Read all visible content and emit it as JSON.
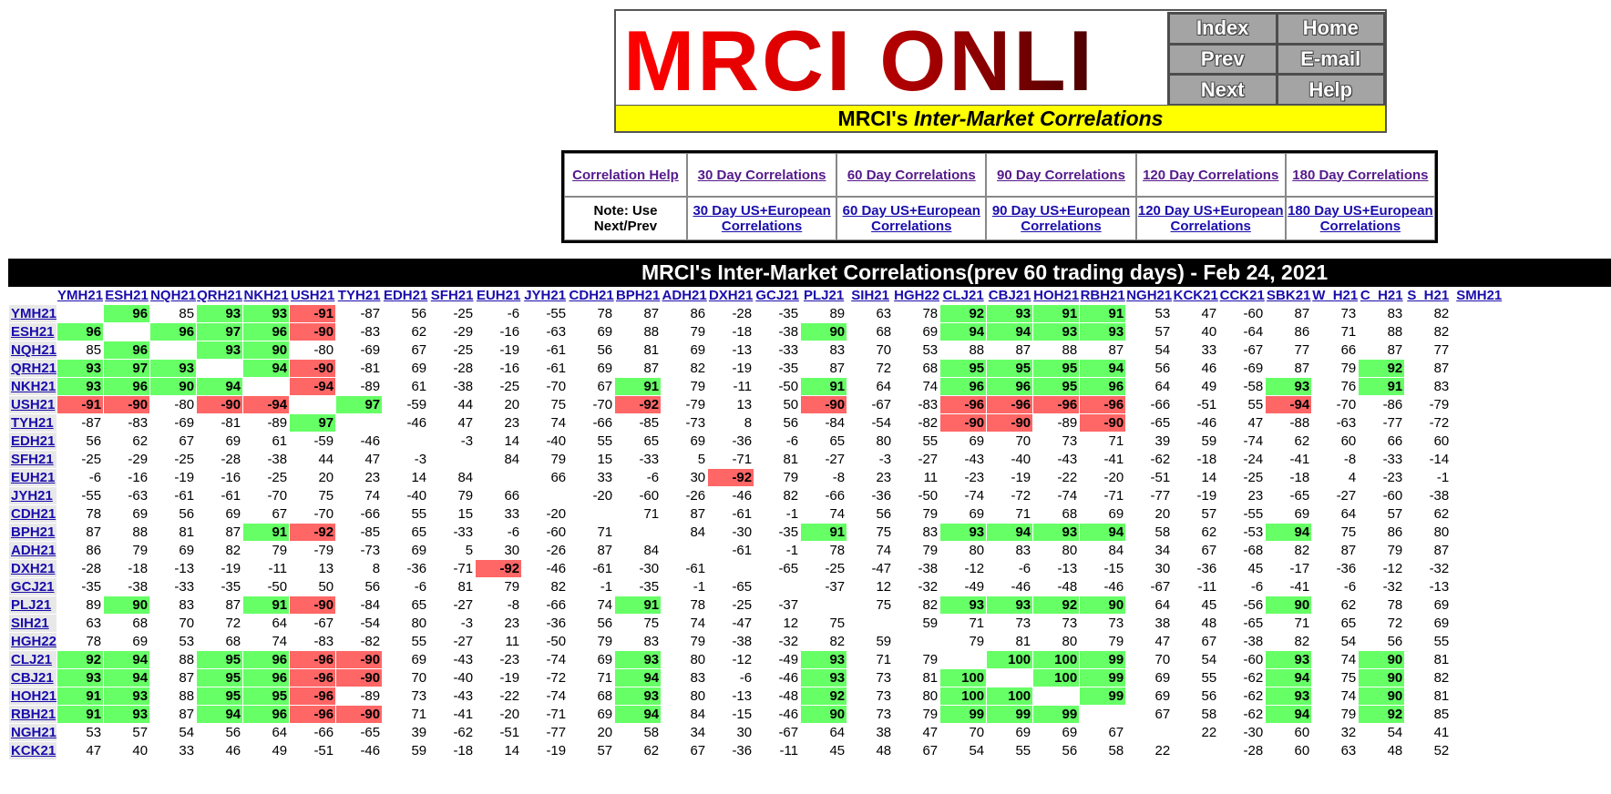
{
  "banner": {
    "logo_text": "MRCI ONLINE",
    "nav": [
      "Index",
      "Home",
      "Prev",
      "E-mail",
      "Next",
      "Help"
    ],
    "subtitle_prefix": "MRCI's ",
    "subtitle_italic": "Inter-Market Correlations"
  },
  "links": {
    "row1": [
      "Correlation Help",
      "30 Day Correlations",
      "60 Day Correlations",
      "90 Day Correlations",
      "120 Day Correlations",
      "180 Day Correlations"
    ],
    "note": "Note: Use Next/Prev",
    "row2": [
      "30 Day US+European Correlations",
      "60 Day US+European Correlations",
      "90 Day US+European Correlations",
      "120 Day US+European Correlations",
      "180 Day US+European Correlations"
    ]
  },
  "table": {
    "title": "MRCI's Inter-Market Correlations(prev 60 trading days) - Feb 24, 2021",
    "columns": [
      "YMH21",
      "ESH21",
      "NQH21",
      "QRH21",
      "NKH21",
      "USH21",
      "TYH21",
      "EDH21",
      "SFH21",
      "EUH21",
      "JYH21",
      "CDH21",
      "BPH21",
      "ADH21",
      "DXH21",
      "GCJ21",
      "PLJ21",
      "SIH21",
      "HGH22",
      "CLJ21",
      "CBJ21",
      "HOH21",
      "RBH21",
      "NGH21",
      "KCK21",
      "CCK21",
      "SBK21",
      "W_H21",
      "C_H21",
      "S_H21",
      "SMH21"
    ],
    "rows": [
      {
        "label": "YMH21",
        "values": [
          "",
          "96",
          "85",
          "93",
          "93",
          "-91",
          "-87",
          "56",
          "-25",
          "-6",
          "-55",
          "78",
          "87",
          "86",
          "-28",
          "-35",
          "89",
          "63",
          "78",
          "92",
          "93",
          "91",
          "91",
          "53",
          "47",
          "-60",
          "87",
          "73",
          "83",
          "82",
          ""
        ]
      },
      {
        "label": "ESH21",
        "values": [
          "96",
          "",
          "96",
          "97",
          "96",
          "-90",
          "-83",
          "62",
          "-29",
          "-16",
          "-63",
          "69",
          "88",
          "79",
          "-18",
          "-38",
          "90",
          "68",
          "69",
          "94",
          "94",
          "93",
          "93",
          "57",
          "40",
          "-64",
          "86",
          "71",
          "88",
          "82",
          ""
        ]
      },
      {
        "label": "NQH21",
        "values": [
          "85",
          "96",
          "",
          "93",
          "90",
          "-80",
          "-69",
          "67",
          "-25",
          "-19",
          "-61",
          "56",
          "81",
          "69",
          "-13",
          "-33",
          "83",
          "70",
          "53",
          "88",
          "87",
          "88",
          "87",
          "54",
          "33",
          "-67",
          "77",
          "66",
          "87",
          "77",
          ""
        ]
      },
      {
        "label": "QRH21",
        "values": [
          "93",
          "97",
          "93",
          "",
          "94",
          "-90",
          "-81",
          "69",
          "-28",
          "-16",
          "-61",
          "69",
          "87",
          "82",
          "-19",
          "-35",
          "87",
          "72",
          "68",
          "95",
          "95",
          "95",
          "94",
          "56",
          "46",
          "-69",
          "87",
          "79",
          "92",
          "87",
          ""
        ]
      },
      {
        "label": "NKH21",
        "values": [
          "93",
          "96",
          "90",
          "94",
          "",
          "-94",
          "-89",
          "61",
          "-38",
          "-25",
          "-70",
          "67",
          "91",
          "79",
          "-11",
          "-50",
          "91",
          "64",
          "74",
          "96",
          "96",
          "95",
          "96",
          "64",
          "49",
          "-58",
          "93",
          "76",
          "91",
          "83",
          ""
        ]
      },
      {
        "label": "USH21",
        "values": [
          "-91",
          "-90",
          "-80",
          "-90",
          "-94",
          "",
          "97",
          "-59",
          "44",
          "20",
          "75",
          "-70",
          "-92",
          "-79",
          "13",
          "50",
          "-90",
          "-67",
          "-83",
          "-96",
          "-96",
          "-96",
          "-96",
          "-66",
          "-51",
          "55",
          "-94",
          "-70",
          "-86",
          "-79",
          ""
        ]
      },
      {
        "label": "TYH21",
        "values": [
          "-87",
          "-83",
          "-69",
          "-81",
          "-89",
          "97",
          "",
          "-46",
          "47",
          "23",
          "74",
          "-66",
          "-85",
          "-73",
          "8",
          "56",
          "-84",
          "-54",
          "-82",
          "-90",
          "-90",
          "-89",
          "-90",
          "-65",
          "-46",
          "47",
          "-88",
          "-63",
          "-77",
          "-72",
          ""
        ]
      },
      {
        "label": "EDH21",
        "values": [
          "56",
          "62",
          "67",
          "69",
          "61",
          "-59",
          "-46",
          "",
          "-3",
          "14",
          "-40",
          "55",
          "65",
          "69",
          "-36",
          "-6",
          "65",
          "80",
          "55",
          "69",
          "70",
          "73",
          "71",
          "39",
          "59",
          "-74",
          "62",
          "60",
          "66",
          "60",
          ""
        ]
      },
      {
        "label": "SFH21",
        "values": [
          "-25",
          "-29",
          "-25",
          "-28",
          "-38",
          "44",
          "47",
          "-3",
          "",
          "84",
          "79",
          "15",
          "-33",
          "5",
          "-71",
          "81",
          "-27",
          "-3",
          "-27",
          "-43",
          "-40",
          "-43",
          "-41",
          "-62",
          "-18",
          "-24",
          "-41",
          "-8",
          "-33",
          "-14",
          ""
        ]
      },
      {
        "label": "EUH21",
        "values": [
          "-6",
          "-16",
          "-19",
          "-16",
          "-25",
          "20",
          "23",
          "14",
          "84",
          "",
          "66",
          "33",
          "-6",
          "30",
          "-92",
          "79",
          "-8",
          "23",
          "11",
          "-23",
          "-19",
          "-22",
          "-20",
          "-51",
          "14",
          "-25",
          "-18",
          "4",
          "-23",
          "-1",
          ""
        ]
      },
      {
        "label": "JYH21",
        "values": [
          "-55",
          "-63",
          "-61",
          "-61",
          "-70",
          "75",
          "74",
          "-40",
          "79",
          "66",
          "",
          "-20",
          "-60",
          "-26",
          "-46",
          "82",
          "-66",
          "-36",
          "-50",
          "-74",
          "-72",
          "-74",
          "-71",
          "-77",
          "-19",
          "23",
          "-65",
          "-27",
          "-60",
          "-38",
          ""
        ]
      },
      {
        "label": "CDH21",
        "values": [
          "78",
          "69",
          "56",
          "69",
          "67",
          "-70",
          "-66",
          "55",
          "15",
          "33",
          "-20",
          "",
          "71",
          "87",
          "-61",
          "-1",
          "74",
          "56",
          "79",
          "69",
          "71",
          "68",
          "69",
          "20",
          "57",
          "-55",
          "69",
          "64",
          "57",
          "62",
          ""
        ]
      },
      {
        "label": "BPH21",
        "values": [
          "87",
          "88",
          "81",
          "87",
          "91",
          "-92",
          "-85",
          "65",
          "-33",
          "-6",
          "-60",
          "71",
          "",
          "84",
          "-30",
          "-35",
          "91",
          "75",
          "83",
          "93",
          "94",
          "93",
          "94",
          "58",
          "62",
          "-53",
          "94",
          "75",
          "86",
          "80",
          ""
        ]
      },
      {
        "label": "ADH21",
        "values": [
          "86",
          "79",
          "69",
          "82",
          "79",
          "-79",
          "-73",
          "69",
          "5",
          "30",
          "-26",
          "87",
          "84",
          "",
          "-61",
          "-1",
          "78",
          "74",
          "79",
          "80",
          "83",
          "80",
          "84",
          "34",
          "67",
          "-68",
          "82",
          "87",
          "79",
          "87",
          ""
        ]
      },
      {
        "label": "DXH21",
        "values": [
          "-28",
          "-18",
          "-13",
          "-19",
          "-11",
          "13",
          "8",
          "-36",
          "-71",
          "-92",
          "-46",
          "-61",
          "-30",
          "-61",
          "",
          "-65",
          "-25",
          "-47",
          "-38",
          "-12",
          "-6",
          "-13",
          "-15",
          "30",
          "-36",
          "45",
          "-17",
          "-36",
          "-12",
          "-32",
          ""
        ]
      },
      {
        "label": "GCJ21",
        "values": [
          "-35",
          "-38",
          "-33",
          "-35",
          "-50",
          "50",
          "56",
          "-6",
          "81",
          "79",
          "82",
          "-1",
          "-35",
          "-1",
          "-65",
          "",
          "-37",
          "12",
          "-32",
          "-49",
          "-46",
          "-48",
          "-46",
          "-67",
          "-11",
          "-6",
          "-41",
          "-6",
          "-32",
          "-13",
          ""
        ]
      },
      {
        "label": "PLJ21",
        "values": [
          "89",
          "90",
          "83",
          "87",
          "91",
          "-90",
          "-84",
          "65",
          "-27",
          "-8",
          "-66",
          "74",
          "91",
          "78",
          "-25",
          "-37",
          "",
          "75",
          "82",
          "93",
          "93",
          "92",
          "90",
          "64",
          "45",
          "-56",
          "90",
          "62",
          "78",
          "69",
          ""
        ]
      },
      {
        "label": "SIH21",
        "values": [
          "63",
          "68",
          "70",
          "72",
          "64",
          "-67",
          "-54",
          "80",
          "-3",
          "23",
          "-36",
          "56",
          "75",
          "74",
          "-47",
          "12",
          "75",
          "",
          "59",
          "71",
          "73",
          "73",
          "73",
          "38",
          "48",
          "-65",
          "71",
          "65",
          "72",
          "69",
          ""
        ]
      },
      {
        "label": "HGH22",
        "values": [
          "78",
          "69",
          "53",
          "68",
          "74",
          "-83",
          "-82",
          "55",
          "-27",
          "11",
          "-50",
          "79",
          "83",
          "79",
          "-38",
          "-32",
          "82",
          "59",
          "",
          "79",
          "81",
          "80",
          "79",
          "47",
          "67",
          "-38",
          "82",
          "54",
          "56",
          "55",
          ""
        ]
      },
      {
        "label": "CLJ21",
        "values": [
          "92",
          "94",
          "88",
          "95",
          "96",
          "-96",
          "-90",
          "69",
          "-43",
          "-23",
          "-74",
          "69",
          "93",
          "80",
          "-12",
          "-49",
          "93",
          "71",
          "79",
          "",
          "100",
          "100",
          "99",
          "70",
          "54",
          "-60",
          "93",
          "74",
          "90",
          "81",
          ""
        ]
      },
      {
        "label": "CBJ21",
        "values": [
          "93",
          "94",
          "87",
          "95",
          "96",
          "-96",
          "-90",
          "70",
          "-40",
          "-19",
          "-72",
          "71",
          "94",
          "83",
          "-6",
          "-46",
          "93",
          "73",
          "81",
          "100",
          "",
          "100",
          "99",
          "69",
          "55",
          "-62",
          "94",
          "75",
          "90",
          "82",
          ""
        ]
      },
      {
        "label": "HOH21",
        "values": [
          "91",
          "93",
          "88",
          "95",
          "95",
          "-96",
          "-89",
          "73",
          "-43",
          "-22",
          "-74",
          "68",
          "93",
          "80",
          "-13",
          "-48",
          "92",
          "73",
          "80",
          "100",
          "100",
          "",
          "99",
          "69",
          "56",
          "-62",
          "93",
          "74",
          "90",
          "81",
          ""
        ]
      },
      {
        "label": "RBH21",
        "values": [
          "91",
          "93",
          "87",
          "94",
          "96",
          "-96",
          "-90",
          "71",
          "-41",
          "-20",
          "-71",
          "69",
          "94",
          "84",
          "-15",
          "-46",
          "90",
          "73",
          "79",
          "99",
          "99",
          "99",
          "",
          "67",
          "58",
          "-62",
          "94",
          "79",
          "92",
          "85",
          ""
        ]
      },
      {
        "label": "NGH21",
        "values": [
          "53",
          "57",
          "54",
          "56",
          "64",
          "-66",
          "-65",
          "39",
          "-62",
          "-51",
          "-77",
          "20",
          "58",
          "34",
          "30",
          "-67",
          "64",
          "38",
          "47",
          "70",
          "69",
          "69",
          "67",
          "",
          "22",
          "-30",
          "60",
          "32",
          "54",
          "41",
          ""
        ]
      },
      {
        "label": "KCK21",
        "values": [
          "47",
          "40",
          "33",
          "46",
          "49",
          "-51",
          "-46",
          "59",
          "-18",
          "14",
          "-19",
          "57",
          "62",
          "67",
          "-36",
          "-11",
          "45",
          "48",
          "67",
          "54",
          "55",
          "56",
          "58",
          "22",
          "",
          "-28",
          "60",
          "63",
          "48",
          "52",
          ""
        ]
      }
    ]
  },
  "colors": {
    "positive": "#66ff66",
    "negative": "#ff6666",
    "link": "#1a0dab",
    "visited": "#551a8b",
    "banner_yellow": "#ffff00",
    "title_bg": "#000000"
  }
}
